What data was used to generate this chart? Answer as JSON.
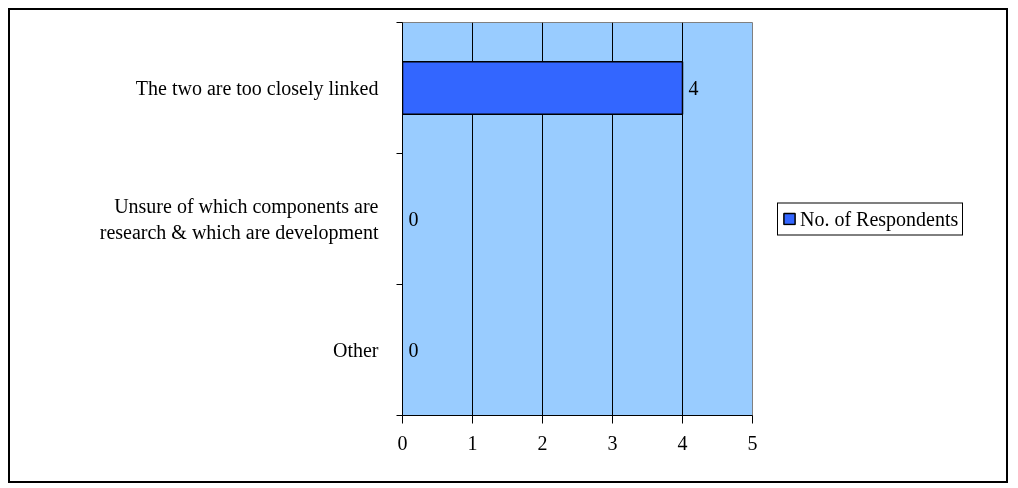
{
  "chart_data": {
    "type": "bar",
    "orientation": "horizontal",
    "categories": [
      "The two are too closely linked",
      "Unsure of which components are research & which are development",
      "Other"
    ],
    "series": [
      {
        "name": "No. of Respondents",
        "color": "#3366ff",
        "values": [
          4,
          0,
          0
        ]
      }
    ],
    "xlim": [
      0,
      5
    ],
    "xticks": [
      0,
      1,
      2,
      3,
      4,
      5
    ],
    "grid": "x",
    "legend": "right",
    "data_labels": true
  }
}
